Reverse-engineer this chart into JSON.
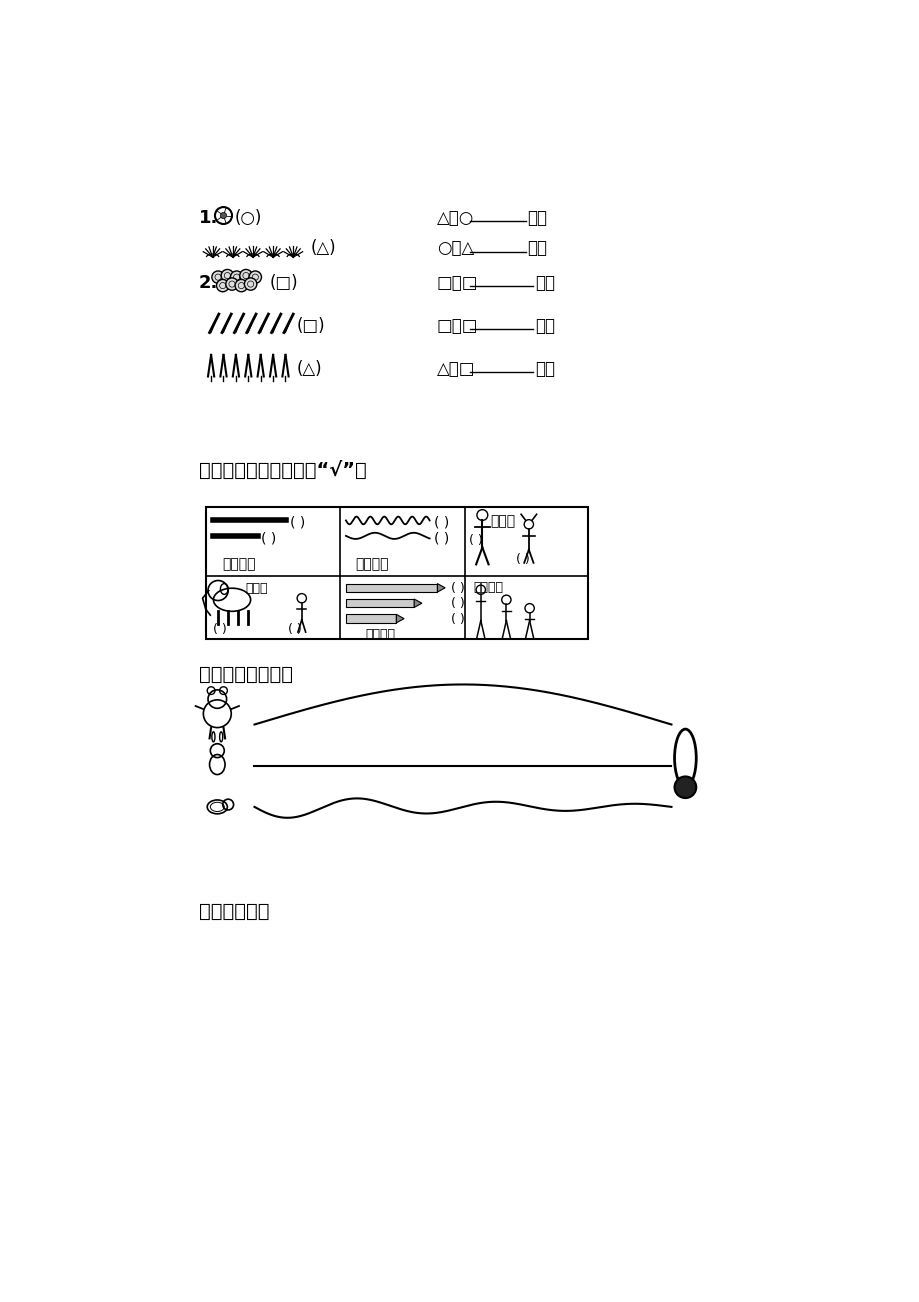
{
  "bg_color": "#ffffff",
  "text_color": "#000000",
  "item1_label": "1.",
  "item2_label": "2.",
  "sec8_title": "八、比一比，按问题画“√”。",
  "sec9_title": "九、谁能夺金牌？",
  "sec10_title": "十、比一比。",
  "grid_r1c1": "哪根长？",
  "grid_r1c2": "哪根短？",
  "grid_r1c3": "谁矮？",
  "grid_r2c1_a": "谁高？",
  "grid_r2c2": "谁最短？",
  "grid_r2c3": "谁最高？",
  "right1": "△比○",
  "right1_end": "个。",
  "right2": "○比△",
  "right2_end": "个。",
  "right3": "□比□",
  "right3_end": "棵。",
  "right4": "□比□",
  "right4_end": "棵。",
  "right5": "△比□",
  "right5_end": "棵。"
}
